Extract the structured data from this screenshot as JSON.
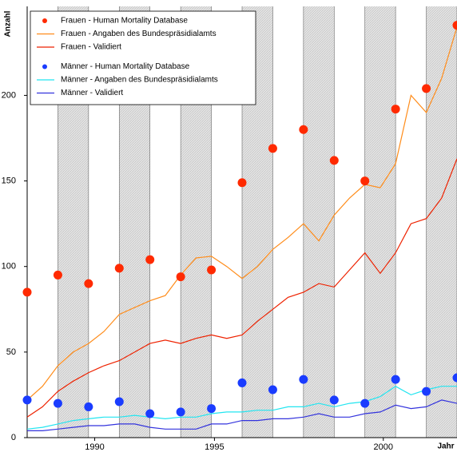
{
  "chart_data": {
    "type": "line",
    "y_label": "Anzahl",
    "x_label": "Jahr",
    "xlim": [
      1988,
      2002
    ],
    "ylim": [
      0,
      252
    ],
    "xticks": [
      {
        "value": 1990.2,
        "label": "1990"
      },
      {
        "value": 1994.1,
        "label": "1995"
      },
      {
        "value": 1999.6,
        "label": "2000"
      }
    ],
    "yticks": [
      0,
      50,
      100,
      150,
      200
    ],
    "legend": "upper left",
    "series": [
      {
        "name": "Frauen - Human Mortality Database",
        "color": "#ff2a00",
        "type": "scatter",
        "x": [
          1988,
          1989,
          1990,
          1991,
          1992,
          1993,
          1994,
          1995,
          1996,
          1997,
          1998,
          1999,
          2000,
          2001,
          2002
        ],
        "values": [
          85,
          95,
          90,
          99,
          104,
          94,
          98,
          149,
          169,
          180,
          162,
          150,
          192,
          204,
          241
        ]
      },
      {
        "name": "Frauen - Angaben des Bundespräsidialamts",
        "color": "#ff8c1a",
        "type": "line",
        "x": [
          1988,
          1988.5,
          1989,
          1989.5,
          1990,
          1990.5,
          1991,
          1991.5,
          1992,
          1992.5,
          1993,
          1993.5,
          1994,
          1994.5,
          1995,
          1995.5,
          1996,
          1996.5,
          1997,
          1997.5,
          1998,
          1998.5,
          1999,
          1999.5,
          2000,
          2000.5,
          2001,
          2001.5,
          2002
        ],
        "values": [
          22,
          30,
          42,
          50,
          55,
          62,
          72,
          76,
          80,
          83,
          95,
          105,
          106,
          100,
          93,
          100,
          110,
          117,
          125,
          115,
          130,
          140,
          148,
          146,
          160,
          200,
          190,
          210,
          240
        ]
      },
      {
        "name": "Frauen - Validiert",
        "color": "#ee2200",
        "type": "line",
        "x": [
          1988,
          1988.5,
          1989,
          1989.5,
          1990,
          1990.5,
          1991,
          1991.5,
          1992,
          1992.5,
          1993,
          1993.5,
          1994,
          1994.5,
          1995,
          1995.5,
          1996,
          1996.5,
          1997,
          1997.5,
          1998,
          1998.5,
          1999,
          1999.5,
          2000,
          2000.5,
          2001,
          2001.5,
          2002
        ],
        "values": [
          12,
          18,
          27,
          33,
          38,
          42,
          45,
          50,
          55,
          57,
          55,
          58,
          60,
          58,
          60,
          68,
          75,
          82,
          85,
          90,
          88,
          98,
          108,
          96,
          108,
          125,
          128,
          140,
          163
        ]
      },
      {
        "name": "Männer - Human Mortality Database",
        "color": "#1a3cff",
        "type": "scatter",
        "x": [
          1988,
          1989,
          1990,
          1991,
          1992,
          1993,
          1994,
          1995,
          1996,
          1997,
          1998,
          1999,
          2000,
          2001,
          2002
        ],
        "values": [
          22,
          20,
          18,
          21,
          14,
          15,
          17,
          32,
          28,
          34,
          22,
          20,
          34,
          27,
          35
        ]
      },
      {
        "name": "Männer - Angaben des Bundespräsidialamts",
        "color": "#22e5f0",
        "type": "line",
        "x": [
          1988,
          1988.5,
          1989,
          1989.5,
          1990,
          1990.5,
          1991,
          1991.5,
          1992,
          1992.5,
          1993,
          1993.5,
          1994,
          1994.5,
          1995,
          1995.5,
          1996,
          1996.5,
          1997,
          1997.5,
          1998,
          1998.5,
          1999,
          1999.5,
          2000,
          2000.5,
          2001,
          2001.5,
          2002
        ],
        "values": [
          5,
          6,
          8,
          10,
          11,
          12,
          12,
          13,
          12,
          11,
          12,
          12,
          14,
          15,
          15,
          16,
          16,
          18,
          18,
          20,
          18,
          20,
          21,
          24,
          30,
          25,
          28,
          30,
          30
        ]
      },
      {
        "name": "Männer - Validiert",
        "color": "#3333dd",
        "type": "line",
        "x": [
          1988,
          1988.5,
          1989,
          1989.5,
          1990,
          1990.5,
          1991,
          1991.5,
          1992,
          1992.5,
          1993,
          1993.5,
          1994,
          1994.5,
          1995,
          1995.5,
          1996,
          1996.5,
          1997,
          1997.5,
          1998,
          1998.5,
          1999,
          1999.5,
          2000,
          2000.5,
          2001,
          2001.5,
          2002
        ],
        "values": [
          4,
          4,
          5,
          6,
          7,
          7,
          8,
          8,
          6,
          5,
          5,
          5,
          8,
          8,
          10,
          10,
          11,
          11,
          12,
          14,
          12,
          12,
          14,
          15,
          19,
          17,
          18,
          22,
          20
        ]
      }
    ]
  }
}
